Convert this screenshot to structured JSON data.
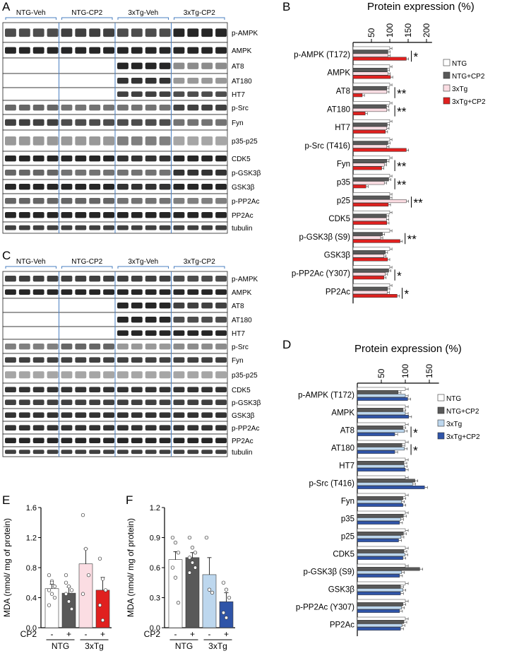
{
  "panel_letters": {
    "A": "A",
    "B": "B",
    "C": "C",
    "D": "D",
    "E": "E",
    "F": "F"
  },
  "colors": {
    "NTG": "#ffffff",
    "NTG_CP2": "#595959",
    "3xTg_red": "#fbdde3",
    "3xTgCP2_red": "#e0201f",
    "3xTg_blue": "#bdd7ee",
    "3xTgCP2_blue": "#2f54a8",
    "blot_divider": "#4a7fc1"
  },
  "blot_A": {
    "groups": [
      "NTG-Veh",
      "NTG-CP2",
      "3xTg-Veh",
      "3xTg-CP2"
    ],
    "rows": [
      "p-AMPK",
      "AMPK",
      "AT8",
      "AT180",
      "HT7",
      "p-Src",
      "Fyn",
      "p35-p25",
      "CDK5",
      "p-GSK3β",
      "GSK3β",
      "p-PP2Ac",
      "PP2Ac",
      "tubulin"
    ]
  },
  "blot_C": {
    "groups": [
      "NTG-Veh",
      "NTG-CP2",
      "3xTg-Veh",
      "3xTg-CP2"
    ],
    "rows": [
      "p-AMPK",
      "AMPK",
      "AT8",
      "AT180",
      "HT7",
      "p-Src",
      "Fyn",
      "p35-p25",
      "CDK5",
      "p-GSK3β",
      "GSK3β",
      "p-PP2Ac",
      "PP2Ac",
      "tubulin"
    ]
  },
  "chart_data": [
    {
      "panel": "B",
      "type": "bar",
      "orientation": "horizontal",
      "title": "Protein expression (%)",
      "axis_ticks": [
        50,
        100,
        150,
        200
      ],
      "xlim": [
        0,
        215
      ],
      "legend": [
        "NTG",
        "NTG+CP2",
        "3xTg",
        "3xTg+CP2"
      ],
      "legend_position": "right",
      "categories": [
        "p-AMPK (T172)",
        "AMPK",
        "AT8",
        "AT180",
        "HT7",
        "p-Src (T416)",
        "Fyn",
        "p35",
        "p25",
        "CDK5",
        "p-GSK3β (S9)",
        "GSK3β",
        "p-PP2Ac (Y307)",
        "PP2Ac"
      ],
      "series": [
        {
          "name": "NTG",
          "values": [
            100,
            100,
            100,
            100,
            100,
            100,
            100,
            100,
            100,
            100,
            100,
            100,
            100,
            100
          ]
        },
        {
          "name": "NTG+CP2",
          "values": [
            95,
            93,
            92,
            91,
            93,
            95,
            92,
            97,
            100,
            91,
            80,
            88,
            97,
            94
          ]
        },
        {
          "name": "3xTg",
          "values": [
            95,
            95,
            92,
            92,
            92,
            92,
            85,
            85,
            145,
            91,
            75,
            84,
            88,
            93
          ]
        },
        {
          "name": "3xTg+CP2",
          "values": [
            145,
            102,
            25,
            33,
            88,
            145,
            78,
            35,
            96,
            92,
            128,
            94,
            84,
            120
          ]
        }
      ],
      "significance": [
        "*",
        "",
        "**",
        "**",
        "",
        "",
        "**",
        "**",
        "**",
        "",
        "**",
        "",
        "*",
        "*"
      ]
    },
    {
      "panel": "D",
      "type": "bar",
      "orientation": "horizontal",
      "title": "Protein expression (%)",
      "axis_ticks": [
        50,
        100,
        150
      ],
      "xlim": [
        0,
        170
      ],
      "legend": [
        "NTG",
        "NTG+CP2",
        "3xTg",
        "3xTg+CP2"
      ],
      "legend_position": "right",
      "categories": [
        "p-AMPK (T172)",
        "AMPK",
        "AT8",
        "AT180",
        "HT7",
        "p-Src (T416)",
        "Fyn",
        "p35",
        "p25",
        "CDK5",
        "p-GSK3β (S9)",
        "GSK3β",
        "p-PP2Ac (Y307)",
        "PP2Ac"
      ],
      "series": [
        {
          "name": "NTG",
          "values": [
            100,
            100,
            100,
            100,
            100,
            100,
            100,
            100,
            100,
            100,
            100,
            100,
            100,
            100
          ]
        },
        {
          "name": "NTG+CP2",
          "values": [
            85,
            95,
            95,
            93,
            97,
            120,
            95,
            96,
            96,
            97,
            130,
            90,
            95,
            97
          ]
        },
        {
          "name": "3xTg",
          "values": [
            100,
            100,
            98,
            98,
            98,
            115,
            92,
            90,
            91,
            99,
            92,
            95,
            92,
            93
          ]
        },
        {
          "name": "3xTg+CP2",
          "values": [
            105,
            107,
            78,
            78,
            100,
            140,
            95,
            88,
            86,
            95,
            88,
            90,
            88,
            90
          ]
        }
      ],
      "significance": [
        "",
        "",
        "*",
        "*",
        "",
        "",
        "",
        "",
        "",
        "",
        "",
        "",
        "",
        ""
      ]
    },
    {
      "panel": "E",
      "type": "bar",
      "ylabel": "MDA (nmol/ mg of protein)",
      "ylim": [
        0,
        1.6
      ],
      "yticks": [
        "0.0",
        "0.4",
        "0.8",
        "1.2",
        "1.6"
      ],
      "cp2_label": "CP2",
      "cp2_signs": [
        "-",
        "+",
        "-",
        "+"
      ],
      "group_labels": [
        "NTG",
        "3xTg"
      ],
      "values": [
        0.52,
        0.46,
        0.85,
        0.5
      ],
      "errors": [
        0.06,
        0.08,
        0.2,
        0.17
      ],
      "points": [
        [
          0.7,
          0.62,
          0.55,
          0.5,
          0.45,
          0.4,
          0.3,
          0.6
        ],
        [
          0.6,
          0.55,
          0.5,
          0.45,
          0.35,
          0.25,
          0.7
        ],
        [
          1.5,
          1.05,
          0.7,
          0.45
        ],
        [
          0.92,
          0.65,
          0.5,
          0.3,
          0.1
        ]
      ]
    },
    {
      "panel": "F",
      "type": "bar",
      "ylabel": "MDA (nmol/ mg of protein)",
      "ylim": [
        0,
        1.2
      ],
      "yticks": [
        "0.0",
        "0.3",
        "0.6",
        "0.9",
        "1.2"
      ],
      "cp2_label": "CP2",
      "cp2_signs": [
        "-",
        "+",
        "-",
        "+"
      ],
      "group_labels": [
        "NTG",
        "3xTg"
      ],
      "values": [
        0.68,
        0.7,
        0.53,
        0.26
      ],
      "errors": [
        0.08,
        0.05,
        0.17,
        0.09
      ],
      "points": [
        [
          0.9,
          0.85,
          0.75,
          0.6,
          0.5,
          0.25
        ],
        [
          0.9,
          0.8,
          0.75,
          0.7,
          0.65,
          0.6,
          0.55
        ],
        [
          0.9,
          0.38,
          0.35
        ],
        [
          0.45,
          0.38,
          0.3,
          0.15,
          0.1
        ]
      ]
    }
  ]
}
